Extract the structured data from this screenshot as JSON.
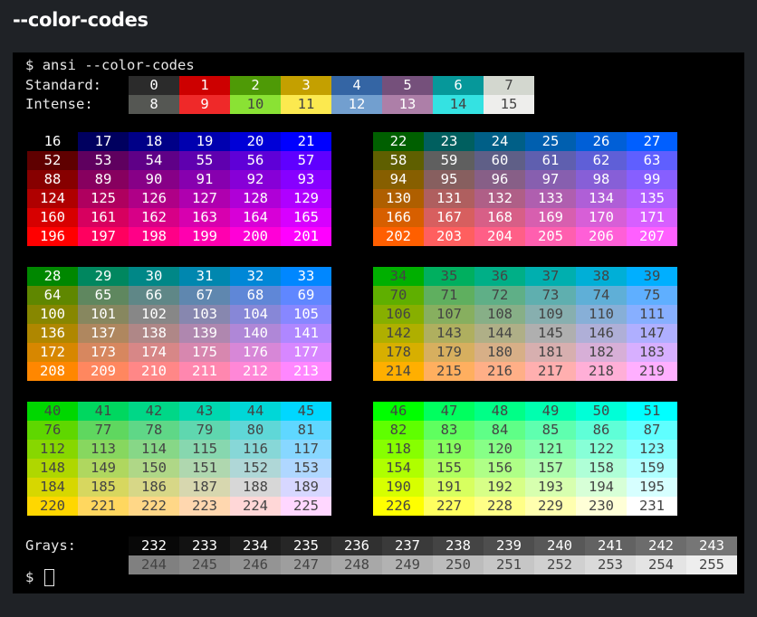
{
  "heading": "--color-codes",
  "terminal": {
    "prompt_symbol": "$",
    "command": "ansi --color-codes",
    "standard_label": "Standard:",
    "intense_label": "Intense:",
    "grays_label": "Grays:",
    "final_prompt": "$"
  },
  "colors": {
    "0": "#2b2b2b",
    "1": "#cd0000",
    "2": "#4e9a06",
    "3": "#c4a000",
    "4": "#3465a4",
    "5": "#75507b",
    "6": "#06989a",
    "7": "#d3d7cf",
    "8": "#555753",
    "9": "#ef2929",
    "10": "#8ae234",
    "11": "#fce94f",
    "12": "#729fcf",
    "13": "#ad7fa8",
    "14": "#34e2e2",
    "15": "#eeeeec"
  },
  "palette": {
    "cube_levels": [
      0,
      95,
      135,
      175,
      215,
      255
    ],
    "gray_start": 232,
    "gray_end": 255,
    "gray_base": 8,
    "gray_step": 10,
    "light_text": "#ffffff",
    "dark_text": "#444444"
  }
}
